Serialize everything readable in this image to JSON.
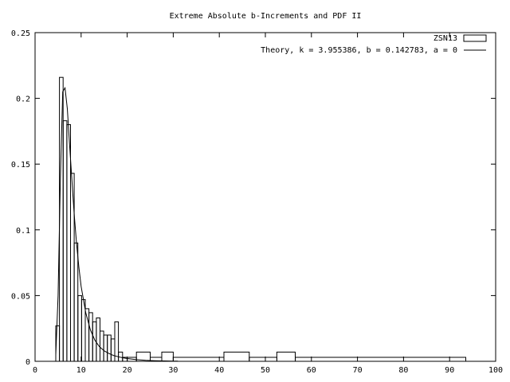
{
  "chart_data": {
    "type": "histogram",
    "title": "Extreme Absolute b-Increments and PDF II",
    "xlabel": "",
    "ylabel": "",
    "xlim": [
      0,
      100
    ],
    "ylim": [
      0,
      0.25
    ],
    "xticks": [
      0,
      10,
      20,
      30,
      40,
      50,
      60,
      70,
      80,
      90,
      100
    ],
    "yticks": [
      0,
      0.05,
      0.1,
      0.15,
      0.2,
      0.25
    ],
    "grid": false,
    "legend_position": "top-right",
    "series": [
      {
        "name": "ZSN13",
        "kind": "histogram",
        "bins": [
          {
            "x0": 4.5,
            "x1": 5.3,
            "y": 0.027
          },
          {
            "x0": 5.3,
            "x1": 6.1,
            "y": 0.216
          },
          {
            "x0": 6.1,
            "x1": 6.9,
            "y": 0.183
          },
          {
            "x0": 6.9,
            "x1": 7.7,
            "y": 0.18
          },
          {
            "x0": 7.7,
            "x1": 8.5,
            "y": 0.143
          },
          {
            "x0": 8.5,
            "x1": 9.3,
            "y": 0.09
          },
          {
            "x0": 9.3,
            "x1": 10.1,
            "y": 0.05
          },
          {
            "x0": 10.1,
            "x1": 10.9,
            "y": 0.047
          },
          {
            "x0": 10.9,
            "x1": 11.7,
            "y": 0.04
          },
          {
            "x0": 11.7,
            "x1": 12.5,
            "y": 0.037
          },
          {
            "x0": 12.5,
            "x1": 13.3,
            "y": 0.03
          },
          {
            "x0": 13.3,
            "x1": 14.1,
            "y": 0.033
          },
          {
            "x0": 14.1,
            "x1": 14.9,
            "y": 0.023
          },
          {
            "x0": 14.9,
            "x1": 15.7,
            "y": 0.02
          },
          {
            "x0": 15.7,
            "x1": 16.5,
            "y": 0.02
          },
          {
            "x0": 16.5,
            "x1": 17.3,
            "y": 0.017
          },
          {
            "x0": 17.3,
            "x1": 18.1,
            "y": 0.03
          },
          {
            "x0": 18.1,
            "x1": 19.0,
            "y": 0.007
          },
          {
            "x0": 19.0,
            "x1": 20.0,
            "y": 0.003
          },
          {
            "x0": 20.0,
            "x1": 22.0,
            "y": 0.003
          },
          {
            "x0": 22.0,
            "x1": 25.0,
            "y": 0.007
          },
          {
            "x0": 25.0,
            "x1": 27.5,
            "y": 0.003
          },
          {
            "x0": 27.5,
            "x1": 30.0,
            "y": 0.007
          },
          {
            "x0": 30.0,
            "x1": 41.0,
            "y": 0.003
          },
          {
            "x0": 41.0,
            "x1": 46.5,
            "y": 0.007
          },
          {
            "x0": 46.5,
            "x1": 52.5,
            "y": 0.003
          },
          {
            "x0": 52.5,
            "x1": 56.5,
            "y": 0.007
          },
          {
            "x0": 56.5,
            "x1": 93.5,
            "y": 0.003
          }
        ]
      },
      {
        "name": "Theory, k = 3.955386, b = 0.142783, a = 0",
        "kind": "line",
        "x": [
          4.5,
          5.0,
          5.5,
          6.0,
          6.5,
          7.0,
          7.5,
          8.0,
          8.5,
          9.0,
          9.5,
          10.0,
          11.0,
          12.0,
          13.0,
          14.0,
          15.0,
          16.0,
          17.0,
          18.0,
          19.0,
          20.0,
          22.0,
          24.0,
          26.0,
          28.0,
          30.0,
          31.0
        ],
        "y": [
          0.005,
          0.05,
          0.14,
          0.205,
          0.208,
          0.192,
          0.165,
          0.138,
          0.112,
          0.09,
          0.072,
          0.057,
          0.037,
          0.024,
          0.016,
          0.011,
          0.008,
          0.006,
          0.0045,
          0.0035,
          0.0027,
          0.0021,
          0.0013,
          0.0008,
          0.0005,
          0.0003,
          0.0002,
          0.0001
        ]
      }
    ]
  }
}
